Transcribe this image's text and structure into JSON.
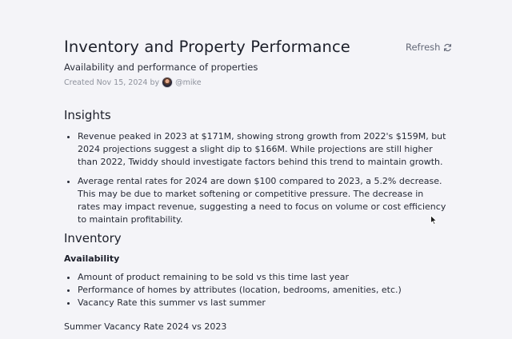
{
  "header": {
    "title": "Inventory and Property Performance",
    "subtitle": "Availability and performance of properties",
    "created": "Created Nov 15, 2024 by",
    "author": "@mike",
    "refresh_label": "Refresh"
  },
  "insights": {
    "heading": "Insights",
    "items": [
      "Revenue peaked in 2023 at $171M, showing strong growth from 2022's $159M, but 2024 projections suggest a slight dip to $166M. While projections are still higher than 2022, Twiddy should investigate factors behind this trend to maintain growth.",
      "Average rental rates for 2024 are down $100 compared to 2023, a 5.2% decrease. This may be due to market softening or competitive pressure. The decrease in rates may impact revenue, suggesting a need to focus on volume or cost efficiency to maintain profitability."
    ]
  },
  "inventory": {
    "heading": "Inventory",
    "availability": {
      "heading": "Availability",
      "items": [
        "Amount of product remaining to be sold vs this time last year",
        "Performance of homes by attributes (location, bedrooms, amenities, etc.)",
        "Vacancy Rate this summer vs last summer"
      ]
    },
    "vacancy_label": "Summer Vacancy Rate 2024 vs 2023"
  },
  "icons": {
    "refresh": "refresh-icon",
    "cursor": "mouse-pointer-icon"
  }
}
